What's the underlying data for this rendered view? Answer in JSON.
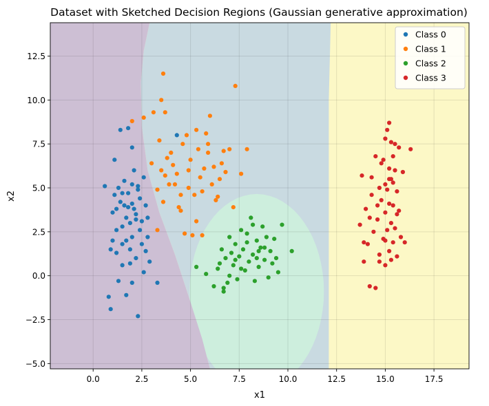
{
  "chart_data": {
    "type": "scatter",
    "title": "Dataset with Sketched Decision Regions (Gaussian generative approximation)",
    "xlabel": "x1",
    "ylabel": "x2",
    "xlim": [
      -2.2,
      19.3
    ],
    "ylim": [
      -5.3,
      14.4
    ],
    "x_ticks": [
      "0.0",
      "2.5",
      "5.0",
      "7.5",
      "10.0",
      "12.5",
      "15.0",
      "17.5"
    ],
    "x_tick_values": [
      0,
      2.5,
      5,
      7.5,
      10,
      12.5,
      15,
      17.5
    ],
    "y_ticks": [
      "−5.0",
      "−2.5",
      "0.0",
      "2.5",
      "5.0",
      "7.5",
      "10.0",
      "12.5"
    ],
    "y_tick_values": [
      -5,
      -2.5,
      0,
      2.5,
      5,
      7.5,
      10,
      12.5
    ],
    "grid": true,
    "legend_position": "top-right",
    "regions": [
      {
        "class": "Class 0",
        "color": "#cdbfd4"
      },
      {
        "class": "Class 1",
        "color": "#c9dae1"
      },
      {
        "class": "Class 2",
        "color": "#cdeedd"
      },
      {
        "class": "Class 3",
        "color": "#fcf8c6"
      }
    ],
    "series": [
      {
        "name": "Class 0",
        "color": "#1f77b4",
        "points": [
          [
            0.6,
            5.1
          ],
          [
            0.8,
            -1.2
          ],
          [
            0.9,
            -1.9
          ],
          [
            0.9,
            1.5
          ],
          [
            1.0,
            3.6
          ],
          [
            1.1,
            4.6
          ],
          [
            1.1,
            6.6
          ],
          [
            1.2,
            3.8
          ],
          [
            1.2,
            2.6
          ],
          [
            1.3,
            5.0
          ],
          [
            1.3,
            -0.3
          ],
          [
            1.4,
            8.3
          ],
          [
            1.4,
            4.2
          ],
          [
            1.5,
            2.8
          ],
          [
            1.5,
            1.8
          ],
          [
            1.5,
            0.6
          ],
          [
            1.6,
            5.4
          ],
          [
            1.7,
            3.3
          ],
          [
            1.7,
            -1.1
          ],
          [
            1.8,
            8.4
          ],
          [
            1.8,
            4.7
          ],
          [
            1.9,
            3.0
          ],
          [
            1.9,
            1.5
          ],
          [
            1.9,
            0.7
          ],
          [
            2.0,
            7.3
          ],
          [
            2.0,
            5.2
          ],
          [
            2.0,
            4.1
          ],
          [
            2.0,
            2.2
          ],
          [
            2.1,
            6.0
          ],
          [
            2.2,
            3.5
          ],
          [
            2.2,
            1.0
          ],
          [
            2.3,
            5.1
          ],
          [
            2.3,
            -2.3
          ],
          [
            2.4,
            4.4
          ],
          [
            2.4,
            2.6
          ],
          [
            2.5,
            3.1
          ],
          [
            2.5,
            1.8
          ],
          [
            2.6,
            5.6
          ],
          [
            2.6,
            0.2
          ],
          [
            2.7,
            4.0
          ],
          [
            2.7,
            1.4
          ],
          [
            2.8,
            3.3
          ],
          [
            2.8,
            2.2
          ],
          [
            2.9,
            0.8
          ],
          [
            1.0,
            2.0
          ],
          [
            1.2,
            1.3
          ],
          [
            1.6,
            4.0
          ],
          [
            2.1,
            3.8
          ],
          [
            2.3,
            4.9
          ],
          [
            1.7,
            2.0
          ],
          [
            2.0,
            -0.4
          ],
          [
            3.3,
            -0.4
          ],
          [
            4.3,
            8.0
          ],
          [
            1.5,
            4.7
          ],
          [
            2.2,
            3.2
          ],
          [
            1.8,
            3.9
          ]
        ]
      },
      {
        "name": "Class 1",
        "color": "#ff7f0e",
        "points": [
          [
            2.0,
            8.8
          ],
          [
            2.6,
            9.0
          ],
          [
            3.1,
            9.3
          ],
          [
            3.5,
            10.0
          ],
          [
            3.6,
            11.5
          ],
          [
            3.7,
            9.3
          ],
          [
            3.4,
            7.7
          ],
          [
            3.8,
            6.7
          ],
          [
            4.0,
            7.0
          ],
          [
            4.1,
            6.3
          ],
          [
            4.2,
            5.2
          ],
          [
            4.3,
            5.8
          ],
          [
            4.4,
            3.9
          ],
          [
            4.5,
            4.6
          ],
          [
            4.6,
            7.5
          ],
          [
            4.8,
            8.0
          ],
          [
            4.9,
            6.0
          ],
          [
            5.0,
            6.6
          ],
          [
            5.2,
            4.6
          ],
          [
            5.3,
            8.3
          ],
          [
            5.4,
            7.2
          ],
          [
            5.5,
            5.6
          ],
          [
            5.6,
            4.8
          ],
          [
            5.7,
            6.1
          ],
          [
            5.8,
            8.1
          ],
          [
            5.9,
            7.0
          ],
          [
            6.0,
            9.1
          ],
          [
            6.1,
            5.2
          ],
          [
            6.2,
            6.2
          ],
          [
            6.4,
            4.5
          ],
          [
            6.5,
            5.5
          ],
          [
            6.6,
            6.4
          ],
          [
            6.7,
            7.1
          ],
          [
            6.8,
            5.9
          ],
          [
            7.0,
            7.2
          ],
          [
            7.3,
            10.8
          ],
          [
            7.6,
            5.8
          ],
          [
            7.9,
            7.2
          ],
          [
            3.0,
            6.4
          ],
          [
            3.3,
            2.6
          ],
          [
            3.5,
            6.0
          ],
          [
            3.7,
            5.7
          ],
          [
            3.9,
            5.2
          ],
          [
            4.5,
            3.7
          ],
          [
            4.7,
            2.4
          ],
          [
            4.9,
            5.0
          ],
          [
            5.1,
            2.3
          ],
          [
            5.3,
            3.1
          ],
          [
            5.6,
            2.3
          ],
          [
            5.9,
            7.5
          ],
          [
            6.3,
            4.3
          ],
          [
            7.2,
            3.9
          ],
          [
            3.3,
            4.9
          ],
          [
            3.6,
            4.2
          ]
        ]
      },
      {
        "name": "Class 2",
        "color": "#2ca02c",
        "points": [
          [
            5.3,
            0.5
          ],
          [
            5.8,
            0.1
          ],
          [
            6.2,
            -0.6
          ],
          [
            6.5,
            0.7
          ],
          [
            6.6,
            1.5
          ],
          [
            6.7,
            -0.9
          ],
          [
            6.8,
            1.0
          ],
          [
            6.9,
            -0.4
          ],
          [
            7.0,
            2.2
          ],
          [
            7.1,
            1.3
          ],
          [
            7.2,
            0.6
          ],
          [
            7.3,
            1.8
          ],
          [
            7.4,
            -0.2
          ],
          [
            7.5,
            1.1
          ],
          [
            7.6,
            2.6
          ],
          [
            7.7,
            1.5
          ],
          [
            7.8,
            0.3
          ],
          [
            7.9,
            1.9
          ],
          [
            8.0,
            0.8
          ],
          [
            8.1,
            3.3
          ],
          [
            8.2,
            1.2
          ],
          [
            8.3,
            -0.3
          ],
          [
            8.4,
            2.0
          ],
          [
            8.5,
            0.5
          ],
          [
            8.6,
            1.6
          ],
          [
            8.7,
            2.8
          ],
          [
            8.8,
            0.9
          ],
          [
            8.9,
            2.2
          ],
          [
            9.0,
            -0.1
          ],
          [
            9.1,
            1.4
          ],
          [
            9.2,
            0.7
          ],
          [
            9.3,
            2.1
          ],
          [
            9.5,
            0.2
          ],
          [
            9.7,
            2.9
          ],
          [
            10.2,
            1.4
          ],
          [
            6.4,
            0.4
          ],
          [
            7.0,
            0.0
          ],
          [
            7.6,
            0.4
          ],
          [
            8.4,
            1.0
          ],
          [
            8.8,
            1.6
          ],
          [
            7.9,
            2.4
          ],
          [
            8.5,
            1.4
          ],
          [
            6.7,
            -0.7
          ],
          [
            7.3,
            0.9
          ],
          [
            8.2,
            2.9
          ],
          [
            9.4,
            1.0
          ]
        ]
      },
      {
        "name": "Class 3",
        "color": "#d62728",
        "points": [
          [
            13.7,
            2.9
          ],
          [
            13.8,
            5.7
          ],
          [
            13.9,
            0.8
          ],
          [
            14.0,
            3.8
          ],
          [
            14.1,
            1.8
          ],
          [
            14.2,
            -0.6
          ],
          [
            14.3,
            4.6
          ],
          [
            14.4,
            2.5
          ],
          [
            14.5,
            -0.7
          ],
          [
            14.5,
            6.8
          ],
          [
            14.6,
            3.2
          ],
          [
            14.7,
            5.0
          ],
          [
            14.7,
            1.2
          ],
          [
            14.8,
            6.4
          ],
          [
            14.8,
            4.3
          ],
          [
            14.9,
            2.1
          ],
          [
            15.0,
            7.8
          ],
          [
            15.0,
            5.2
          ],
          [
            15.0,
            3.6
          ],
          [
            15.0,
            0.6
          ],
          [
            15.1,
            8.3
          ],
          [
            15.1,
            4.9
          ],
          [
            15.1,
            2.6
          ],
          [
            15.2,
            8.7
          ],
          [
            15.2,
            6.1
          ],
          [
            15.2,
            4.1
          ],
          [
            15.2,
            1.4
          ],
          [
            15.3,
            7.6
          ],
          [
            15.3,
            5.5
          ],
          [
            15.3,
            3.0
          ],
          [
            15.3,
            0.9
          ],
          [
            15.4,
            6.8
          ],
          [
            15.4,
            5.3
          ],
          [
            15.4,
            4.0
          ],
          [
            15.4,
            1.9
          ],
          [
            15.5,
            7.5
          ],
          [
            15.5,
            6.0
          ],
          [
            15.5,
            2.7
          ],
          [
            15.6,
            4.8
          ],
          [
            15.6,
            1.1
          ],
          [
            15.7,
            7.3
          ],
          [
            15.7,
            3.7
          ],
          [
            15.8,
            2.2
          ],
          [
            15.9,
            5.9
          ],
          [
            16.3,
            7.2
          ],
          [
            14.2,
            3.3
          ],
          [
            14.6,
            4.0
          ],
          [
            15.2,
            5.5
          ],
          [
            14.3,
            5.6
          ],
          [
            15.0,
            2.0
          ],
          [
            16.0,
            1.9
          ],
          [
            13.9,
            1.9
          ],
          [
            14.7,
            0.8
          ],
          [
            15.6,
            3.5
          ],
          [
            14.9,
            6.6
          ]
        ]
      }
    ]
  }
}
